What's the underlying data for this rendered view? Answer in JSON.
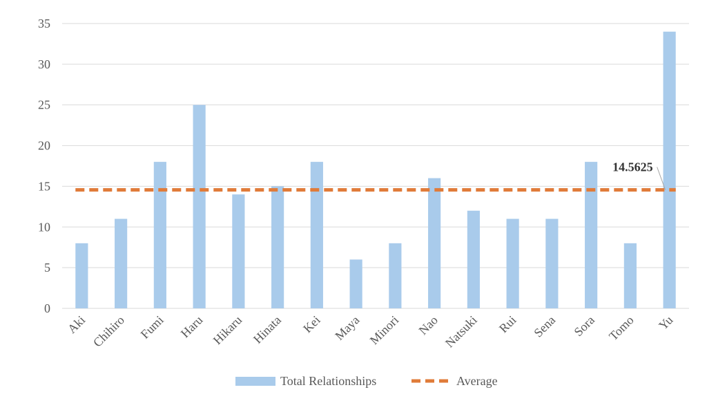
{
  "chart_data": {
    "type": "bar",
    "categories": [
      "Aki",
      "Chihiro",
      "Fumi",
      "Haru",
      "Hikaru",
      "Hinata",
      "Kei",
      "Maya",
      "Minori",
      "Nao",
      "Natsuki",
      "Rui",
      "Sena",
      "Sora",
      "Tomo",
      "Yu"
    ],
    "series": [
      {
        "name": "Total Relationships",
        "values": [
          8,
          11,
          18,
          25,
          14,
          15,
          18,
          6,
          8,
          16,
          12,
          11,
          11,
          18,
          8,
          34
        ],
        "color": "#A9CBEB"
      }
    ],
    "average": {
      "name": "Average",
      "value": 14.5625,
      "label": "14.5625",
      "color": "#E07B39",
      "style": "dashed"
    },
    "ylim": [
      0,
      35
    ],
    "yticks": [
      "0",
      "5",
      "10",
      "15",
      "20",
      "25",
      "30",
      "35"
    ],
    "grid": true,
    "legend_position": "bottom",
    "title": "",
    "xlabel": "",
    "ylabel": ""
  }
}
